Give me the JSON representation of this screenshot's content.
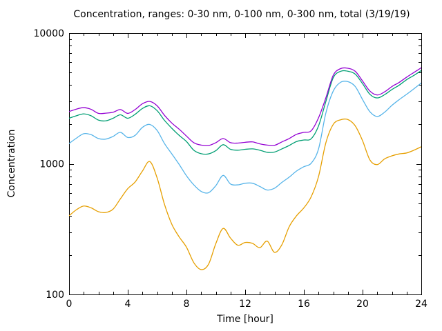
{
  "chart_data": {
    "type": "line",
    "title": "Concentration, ranges: 0-30 nm, 0-100 nm, 0-300 nm, total (3/19/19)",
    "xlabel": "Time [hour]",
    "ylabel": "Concentration",
    "x_axis": {
      "min": 0,
      "max": 24,
      "major_ticks": [
        0,
        4,
        8,
        12,
        16,
        20,
        24
      ],
      "minor_tick_every": 1
    },
    "y_axis": {
      "scale": "log",
      "min": 100,
      "max": 10000,
      "major_ticks": [
        100,
        1000,
        10000
      ],
      "minor_mantissas": [
        2,
        3,
        4,
        5,
        6,
        7,
        8,
        9
      ]
    },
    "grid": false,
    "legend": "none",
    "x_hours": [
      0,
      0.5,
      1,
      1.5,
      2,
      2.5,
      3,
      3.5,
      4,
      4.5,
      5,
      5.5,
      6,
      6.5,
      7,
      7.5,
      8,
      8.5,
      9,
      9.5,
      10,
      10.5,
      11,
      11.5,
      12,
      12.5,
      13,
      13.5,
      14,
      14.5,
      15,
      15.5,
      16,
      16.5,
      17,
      17.5,
      18,
      18.5,
      19,
      19.5,
      20,
      20.5,
      21,
      21.5,
      22,
      22.5,
      23,
      23.5,
      24
    ],
    "series": [
      {
        "name": "0-30 nm",
        "color": "#E69F00",
        "values": [
          400,
          445,
          475,
          460,
          430,
          424,
          450,
          540,
          645,
          725,
          880,
          1040,
          780,
          490,
          345,
          276,
          230,
          175,
          155,
          170,
          245,
          320,
          270,
          238,
          250,
          246,
          228,
          256,
          210,
          240,
          330,
          400,
          460,
          560,
          800,
          1450,
          2000,
          2170,
          2180,
          1950,
          1500,
          1070,
          985,
          1090,
          1150,
          1190,
          1210,
          1270,
          1350
        ]
      },
      {
        "name": "0-100 nm",
        "color": "#56B4E9",
        "values": [
          1430,
          1570,
          1700,
          1670,
          1560,
          1545,
          1620,
          1740,
          1590,
          1650,
          1900,
          2000,
          1800,
          1430,
          1190,
          990,
          810,
          690,
          615,
          600,
          680,
          815,
          700,
          690,
          710,
          710,
          670,
          630,
          650,
          720,
          790,
          880,
          950,
          1010,
          1300,
          2450,
          3600,
          4200,
          4250,
          3900,
          3100,
          2500,
          2300,
          2480,
          2800,
          3100,
          3400,
          3750,
          4150
        ]
      },
      {
        "name": "0-300 nm",
        "color": "#009E73",
        "values": [
          2230,
          2330,
          2410,
          2330,
          2160,
          2130,
          2230,
          2370,
          2230,
          2390,
          2650,
          2780,
          2550,
          2150,
          1870,
          1650,
          1480,
          1270,
          1195,
          1190,
          1260,
          1400,
          1290,
          1270,
          1290,
          1300,
          1270,
          1225,
          1230,
          1300,
          1380,
          1480,
          1520,
          1555,
          1950,
          3000,
          4550,
          5100,
          5110,
          4850,
          4100,
          3400,
          3190,
          3380,
          3700,
          4000,
          4400,
          4750,
          5170
        ]
      },
      {
        "name": "total",
        "color": "#9400D3",
        "values": [
          2510,
          2620,
          2690,
          2610,
          2430,
          2440,
          2480,
          2600,
          2430,
          2600,
          2880,
          3000,
          2780,
          2350,
          2050,
          1840,
          1630,
          1450,
          1390,
          1380,
          1450,
          1560,
          1450,
          1440,
          1460,
          1470,
          1420,
          1390,
          1385,
          1470,
          1560,
          1680,
          1740,
          1790,
          2250,
          3200,
          4750,
          5350,
          5380,
          5100,
          4300,
          3600,
          3360,
          3550,
          3900,
          4200,
          4600,
          5000,
          5430
        ]
      }
    ]
  }
}
